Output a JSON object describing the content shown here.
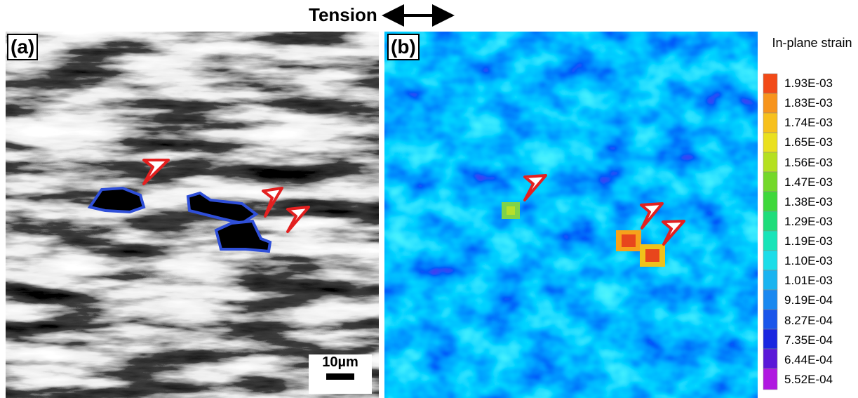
{
  "title": "Tension",
  "panels": [
    {
      "label": "(a)",
      "scale_bar": "10µm"
    },
    {
      "label": "(b)"
    }
  ],
  "colorbar": {
    "title": "In-plane strain",
    "labels": [
      "1.93E-03",
      "1.83E-03",
      "1.74E-03",
      "1.65E-03",
      "1.56E-03",
      "1.47E-03",
      "1.38E-03",
      "1.29E-03",
      "1.19E-03",
      "1.10E-03",
      "1.01E-03",
      "9.19E-04",
      "8.27E-04",
      "7.35E-04",
      "6.44E-04",
      "5.52E-04"
    ]
  }
}
